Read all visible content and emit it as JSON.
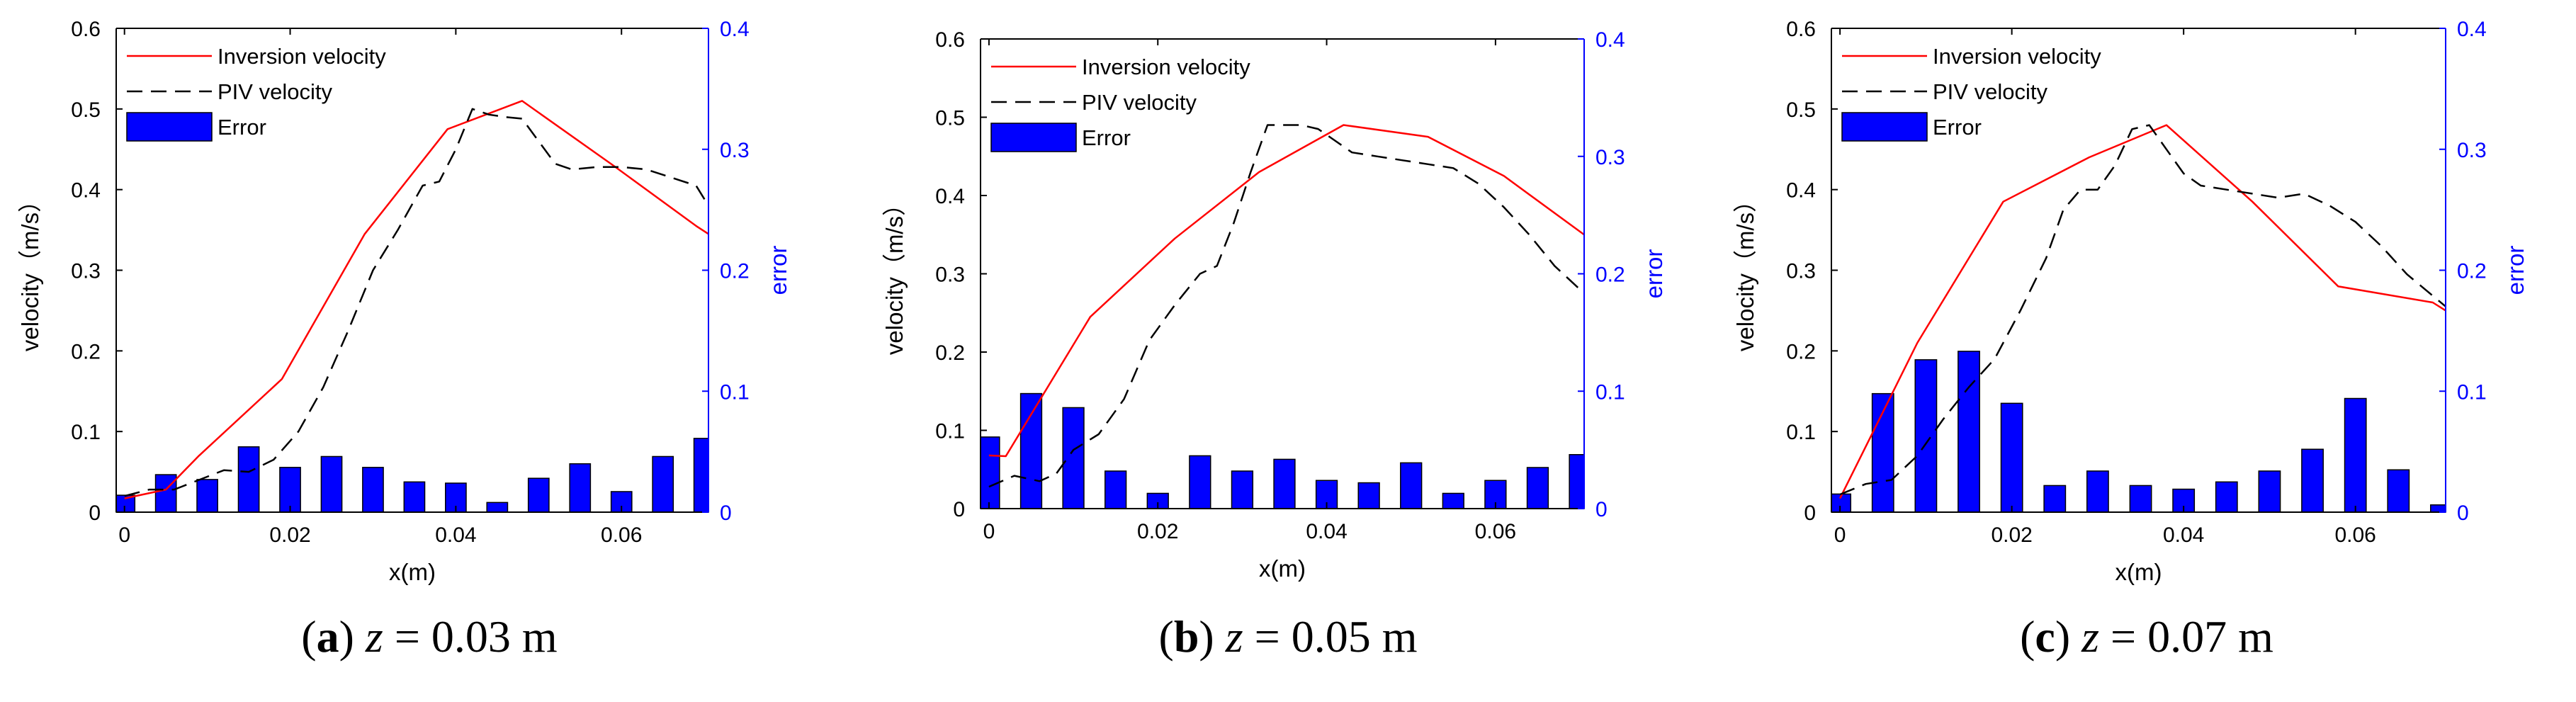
{
  "colors": {
    "inversion": "#ff0000",
    "piv": "#000000",
    "error_fill": "#0000ff",
    "right_axis": "#0000ff"
  },
  "chart_data": [
    {
      "type": "line+bar",
      "caption": {
        "letter": "a",
        "var": "z",
        "rest": " = 0.03 m"
      },
      "xlabel": "x(m)",
      "ylabel": "velocity（m/s）",
      "y2label": "error",
      "xlim": [
        -0.001,
        0.0705
      ],
      "ylim": [
        0,
        0.6
      ],
      "y2lim": [
        0,
        0.4
      ],
      "xticks": [
        0,
        0.02,
        0.04,
        0.06
      ],
      "xticklabels": [
        "0",
        "0.02",
        "0.04",
        "0.06"
      ],
      "yticks": [
        0,
        0.1,
        0.2,
        0.3,
        0.4,
        0.5,
        0.6
      ],
      "yticklabels": [
        "0",
        "0.1",
        "0.2",
        "0.3",
        "0.4",
        "0.5",
        "0.6"
      ],
      "y2ticks": [
        0,
        0.1,
        0.2,
        0.3,
        0.4
      ],
      "y2ticklabels": [
        "0",
        "0.1",
        "0.2",
        "0.3",
        "0.4"
      ],
      "legend": [
        "Inversion velocity",
        "PIV velocity",
        "Error"
      ],
      "series": [
        {
          "name": "Inversion velocity",
          "axis": "left",
          "x": [
            0,
            0.005,
            0.009,
            0.019,
            0.029,
            0.039,
            0.048,
            0.059,
            0.069,
            0.0705
          ],
          "y": [
            0.017,
            0.028,
            0.07,
            0.165,
            0.345,
            0.475,
            0.51,
            0.43,
            0.355,
            0.345
          ]
        },
        {
          "name": "PIV velocity",
          "axis": "left",
          "x": [
            0,
            0.003,
            0.006,
            0.009,
            0.012,
            0.015,
            0.018,
            0.021,
            0.024,
            0.027,
            0.03,
            0.033,
            0.036,
            0.038,
            0.04,
            0.042,
            0.044,
            0.046,
            0.048,
            0.05,
            0.052,
            0.054,
            0.057,
            0.06,
            0.063,
            0.066,
            0.069,
            0.0705
          ],
          "y": [
            0.02,
            0.028,
            0.028,
            0.04,
            0.052,
            0.05,
            0.065,
            0.1,
            0.155,
            0.225,
            0.3,
            0.35,
            0.405,
            0.41,
            0.45,
            0.5,
            0.493,
            0.49,
            0.488,
            0.46,
            0.432,
            0.425,
            0.428,
            0.428,
            0.425,
            0.415,
            0.405,
            0.38
          ]
        },
        {
          "name": "Error",
          "axis": "right",
          "type": "bar",
          "x": [
            0,
            0.005,
            0.01,
            0.015,
            0.02,
            0.025,
            0.03,
            0.035,
            0.04,
            0.045,
            0.05,
            0.055,
            0.06,
            0.065,
            0.07
          ],
          "y": [
            0.014,
            0.031,
            0.027,
            0.054,
            0.037,
            0.046,
            0.037,
            0.025,
            0.024,
            0.008,
            0.028,
            0.04,
            0.017,
            0.046,
            0.061
          ]
        }
      ]
    },
    {
      "type": "line+bar",
      "caption": {
        "letter": "b",
        "var": "z",
        "rest": " = 0.05 m"
      },
      "xlabel": "x(m)",
      "ylabel": "velocity（m/s）",
      "y2label": "error",
      "xlim": [
        -0.001,
        0.0705
      ],
      "ylim": [
        0,
        0.6
      ],
      "y2lim": [
        0,
        0.4
      ],
      "xticks": [
        0,
        0.02,
        0.04,
        0.06
      ],
      "xticklabels": [
        "0",
        "0.02",
        "0.04",
        "0.06"
      ],
      "yticks": [
        0,
        0.1,
        0.2,
        0.3,
        0.4,
        0.5,
        0.6
      ],
      "yticklabels": [
        "0",
        "0.1",
        "0.2",
        "0.3",
        "0.4",
        "0.5",
        "0.6"
      ],
      "y2ticks": [
        0,
        0.1,
        0.2,
        0.3,
        0.4
      ],
      "y2ticklabels": [
        "0",
        "0.1",
        "0.2",
        "0.3",
        "0.4"
      ],
      "legend": [
        "Inversion velocity",
        "PIV velocity",
        "Error"
      ],
      "series": [
        {
          "name": "Inversion velocity",
          "axis": "left",
          "x": [
            0,
            0.002,
            0.012,
            0.022,
            0.032,
            0.042,
            0.052,
            0.061,
            0.0705
          ],
          "y": [
            0.068,
            0.067,
            0.245,
            0.345,
            0.43,
            0.49,
            0.475,
            0.425,
            0.35
          ]
        },
        {
          "name": "PIV velocity",
          "axis": "left",
          "x": [
            0,
            0.003,
            0.006,
            0.008,
            0.01,
            0.013,
            0.016,
            0.019,
            0.022,
            0.025,
            0.027,
            0.029,
            0.031,
            0.033,
            0.035,
            0.037,
            0.039,
            0.041,
            0.043,
            0.046,
            0.049,
            0.052,
            0.055,
            0.058,
            0.061,
            0.064,
            0.067,
            0.0705
          ],
          "y": [
            0.028,
            0.042,
            0.035,
            0.045,
            0.075,
            0.095,
            0.14,
            0.215,
            0.26,
            0.3,
            0.31,
            0.365,
            0.43,
            0.49,
            0.49,
            0.49,
            0.485,
            0.47,
            0.455,
            0.45,
            0.445,
            0.44,
            0.435,
            0.415,
            0.385,
            0.35,
            0.31,
            0.275
          ]
        },
        {
          "name": "Error",
          "axis": "right",
          "type": "bar",
          "x": [
            0,
            0.005,
            0.01,
            0.015,
            0.02,
            0.025,
            0.03,
            0.035,
            0.04,
            0.045,
            0.05,
            0.055,
            0.06,
            0.065,
            0.07
          ],
          "y": [
            0.061,
            0.098,
            0.086,
            0.032,
            0.013,
            0.045,
            0.032,
            0.042,
            0.024,
            0.022,
            0.039,
            0.013,
            0.024,
            0.035,
            0.046
          ]
        }
      ]
    },
    {
      "type": "line+bar",
      "caption": {
        "letter": "c",
        "var": "z",
        "rest": " = 0.07 m"
      },
      "xlabel": "x(m)",
      "ylabel": "velocity（m/s）",
      "y2label": "error",
      "xlim": [
        -0.001,
        0.0705
      ],
      "ylim": [
        0,
        0.6
      ],
      "y2lim": [
        0,
        0.4
      ],
      "xticks": [
        0,
        0.02,
        0.04,
        0.06
      ],
      "xticklabels": [
        "0",
        "0.02",
        "0.04",
        "0.06"
      ],
      "yticks": [
        0,
        0.1,
        0.2,
        0.3,
        0.4,
        0.5,
        0.6
      ],
      "yticklabels": [
        "0",
        "0.1",
        "0.2",
        "0.3",
        "0.4",
        "0.5",
        "0.6"
      ],
      "y2ticks": [
        0,
        0.1,
        0.2,
        0.3,
        0.4
      ],
      "y2ticklabels": [
        "0",
        "0.1",
        "0.2",
        "0.3",
        "0.4"
      ],
      "legend": [
        "Inversion velocity",
        "PIV velocity",
        "Error"
      ],
      "series": [
        {
          "name": "Inversion velocity",
          "axis": "left",
          "x": [
            0,
            0.009,
            0.019,
            0.029,
            0.038,
            0.048,
            0.058,
            0.069,
            0.0705
          ],
          "y": [
            0.017,
            0.21,
            0.385,
            0.44,
            0.48,
            0.385,
            0.28,
            0.26,
            0.25
          ]
        },
        {
          "name": "PIV velocity",
          "axis": "left",
          "x": [
            0,
            0.003,
            0.006,
            0.009,
            0.012,
            0.015,
            0.018,
            0.021,
            0.024,
            0.026,
            0.028,
            0.03,
            0.032,
            0.034,
            0.036,
            0.038,
            0.04,
            0.042,
            0.045,
            0.048,
            0.051,
            0.054,
            0.057,
            0.06,
            0.063,
            0.066,
            0.0705
          ],
          "y": [
            0.022,
            0.035,
            0.04,
            0.07,
            0.115,
            0.155,
            0.19,
            0.25,
            0.315,
            0.375,
            0.4,
            0.4,
            0.43,
            0.475,
            0.48,
            0.45,
            0.42,
            0.405,
            0.4,
            0.395,
            0.39,
            0.395,
            0.38,
            0.36,
            0.33,
            0.295,
            0.255
          ]
        },
        {
          "name": "Error",
          "axis": "right",
          "type": "bar",
          "x": [
            0,
            0.005,
            0.01,
            0.015,
            0.02,
            0.025,
            0.03,
            0.035,
            0.04,
            0.045,
            0.05,
            0.055,
            0.06,
            0.065,
            0.07
          ],
          "y": [
            0.015,
            0.098,
            0.126,
            0.133,
            0.09,
            0.022,
            0.034,
            0.022,
            0.019,
            0.025,
            0.034,
            0.052,
            0.094,
            0.035,
            0.006
          ]
        }
      ]
    }
  ]
}
